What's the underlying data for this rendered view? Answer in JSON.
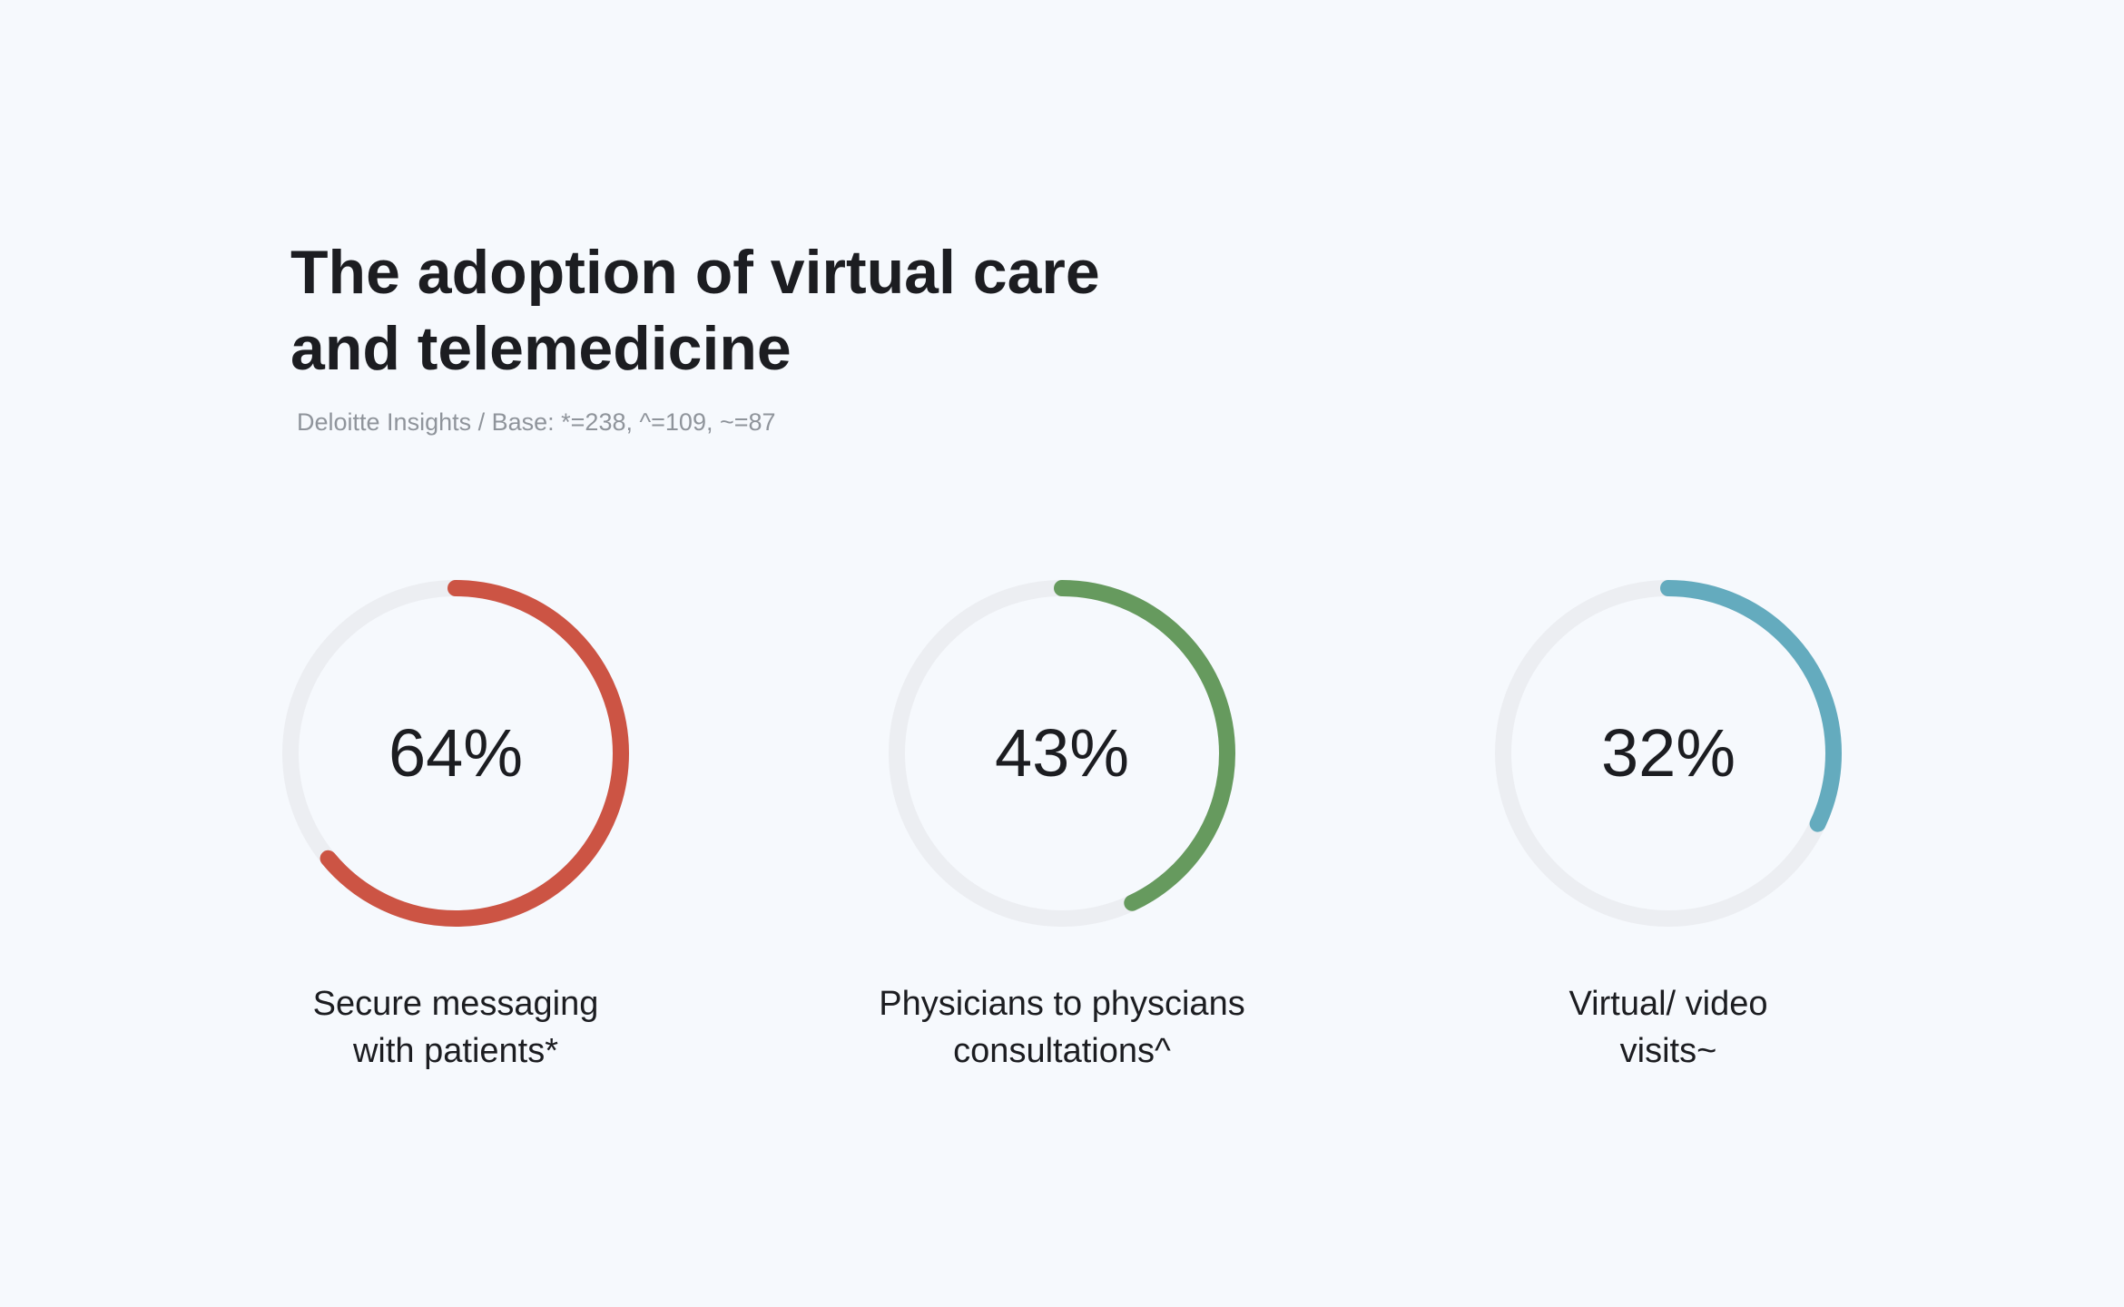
{
  "title": "The adoption of virtual care and telemedicine",
  "subtitle": "Deloitte Insights / Base: *=238,  ^=109,  ~=87",
  "chart_data": {
    "type": "pie",
    "title": "The adoption of virtual care and telemedicine",
    "subtitle": "Deloitte Insights / Base: *=238,  ^=109,  ~=87",
    "track_color": "#eceef2",
    "items": [
      {
        "label_line1": "Secure messaging",
        "label_line2": "with patients*",
        "value": 64,
        "value_text": "64%",
        "color": "#cc5444"
      },
      {
        "label_line1": "Physicians to physcians",
        "label_line2": "consultations^",
        "value": 43,
        "value_text": "43%",
        "color": "#669a5e"
      },
      {
        "label_line1": "Virtual/ video",
        "label_line2": "visits~",
        "value": 32,
        "value_text": "32%",
        "color": "#64abbe"
      }
    ]
  }
}
